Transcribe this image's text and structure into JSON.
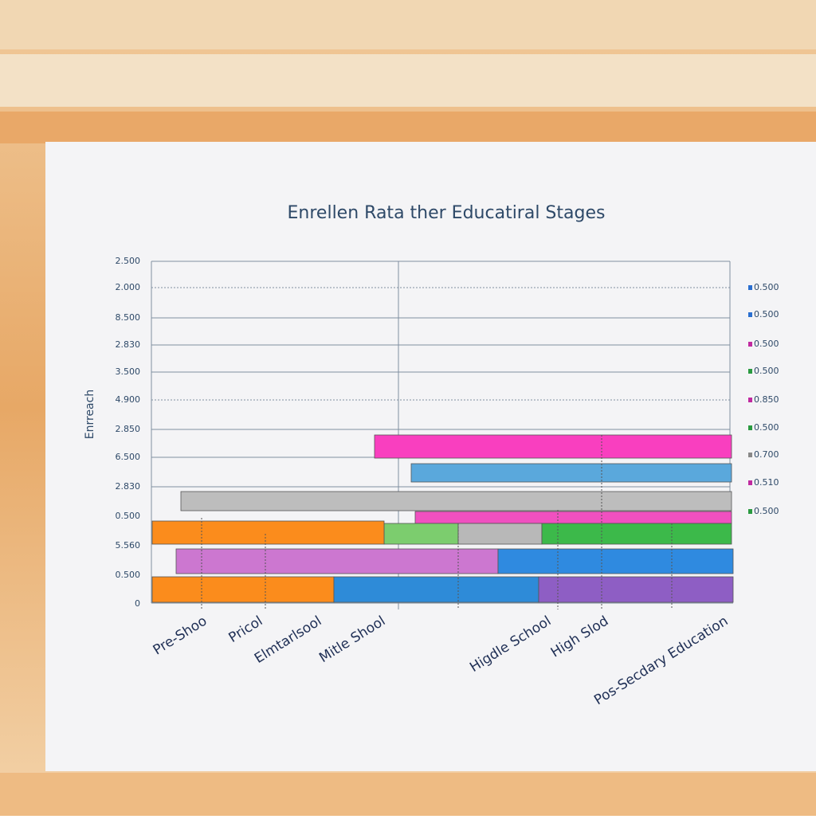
{
  "title": "Enrellen Rata ther Educatiral Stages",
  "y_axis": {
    "label": "Enrreach",
    "left_labels": [
      "2.500",
      "2.000",
      "8.500",
      "2.830",
      "3.500",
      "4.900",
      "2.850",
      "6.500",
      "2.830",
      "0.500",
      "5.560",
      "0.500",
      "0"
    ],
    "right_labels": [
      "0.500",
      "0.500",
      "0.500",
      "0.500",
      "0.850",
      "0.500",
      "0.700",
      "0.510",
      "0.500"
    ]
  },
  "x_labels": [
    "Pre-Shoo",
    "Pricol",
    "Elmtarlsool",
    "Mitle Shool",
    "Higdle School",
    "High Slod",
    "Pos-Secdary Education"
  ]
}
